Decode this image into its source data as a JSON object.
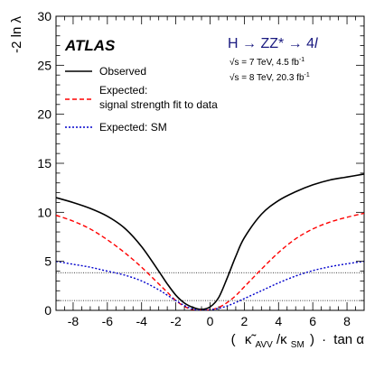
{
  "chart_data": {
    "type": "line",
    "ylabel": "-2 ln λ",
    "xlabel": {
      "open": "(",
      "kappa": "κ̃",
      "kappa_sub": "AVV",
      "slash": "/κ",
      "sm_sub": "SM",
      "close": ")",
      "times": "·",
      "tan": "tan α"
    },
    "xlim": [
      -9,
      9
    ],
    "ylim": [
      0,
      30
    ],
    "xticks": [
      -8,
      -6,
      -4,
      -2,
      0,
      2,
      4,
      6,
      8
    ],
    "yticks": [
      0,
      5,
      10,
      15,
      20,
      25,
      30
    ],
    "atlas_label": "ATLAS",
    "process": {
      "main": "H → ZZ* → 4",
      "lepton": "l"
    },
    "energy_lines": [
      {
        "sqrt": "√",
        "s_text": "s = 7 TeV, 4.5 fb",
        "sup": "-1"
      },
      {
        "sqrt": "√",
        "s_text": "s = 8 TeV, 20.3 fb",
        "sup": "-1"
      }
    ],
    "reference_lines": [
      1,
      3.84
    ],
    "legend_placement": "top-left",
    "series": [
      {
        "name": "Observed",
        "color": "#000000",
        "dash": "solid",
        "x": [
          -9,
          -8,
          -7,
          -6,
          -5,
          -4,
          -3,
          -2.5,
          -2,
          -1.5,
          -1,
          -0.5,
          0,
          0.5,
          1,
          1.5,
          2,
          3,
          4,
          5,
          6,
          7,
          8,
          9
        ],
        "y": [
          11.5,
          11.0,
          10.4,
          9.6,
          8.4,
          6.5,
          4.0,
          2.7,
          1.55,
          0.75,
          0.3,
          0.1,
          0.35,
          1.3,
          3.3,
          5.5,
          7.4,
          9.8,
          11.2,
          12.1,
          12.8,
          13.3,
          13.6,
          13.9
        ]
      },
      {
        "name": "Expected: signal strength fit to data",
        "name_line2": "signal strength fit to data",
        "name_line1": "Expected:",
        "color": "#ff0000",
        "dash": "dashed",
        "x": [
          -9,
          -8,
          -7,
          -6,
          -5,
          -4,
          -3,
          -2.5,
          -2,
          -1.5,
          -1,
          -0.5,
          0,
          0.5,
          1,
          1.5,
          2,
          3,
          4,
          5,
          6,
          7,
          8,
          9
        ],
        "y": [
          9.7,
          9.1,
          8.3,
          7.2,
          5.9,
          4.4,
          2.7,
          1.85,
          1.0,
          0.4,
          0.05,
          0.0,
          0.05,
          0.3,
          0.8,
          1.5,
          2.4,
          4.2,
          5.9,
          7.3,
          8.3,
          9.0,
          9.5,
          9.9
        ]
      },
      {
        "name": "Expected: SM",
        "color": "#0000cc",
        "dash": "dotted",
        "x": [
          -9,
          -8,
          -7,
          -6,
          -5,
          -4,
          -3,
          -2.5,
          -2,
          -1.5,
          -1,
          -0.5,
          0,
          0.5,
          1,
          1.5,
          2,
          3,
          4,
          5,
          6,
          7,
          8,
          9
        ],
        "y": [
          5.0,
          4.7,
          4.4,
          4.0,
          3.6,
          3.0,
          2.1,
          1.55,
          1.0,
          0.5,
          0.12,
          0.0,
          0.05,
          0.2,
          0.45,
          0.8,
          1.2,
          2.0,
          2.8,
          3.5,
          4.05,
          4.45,
          4.75,
          5.0
        ]
      }
    ]
  }
}
